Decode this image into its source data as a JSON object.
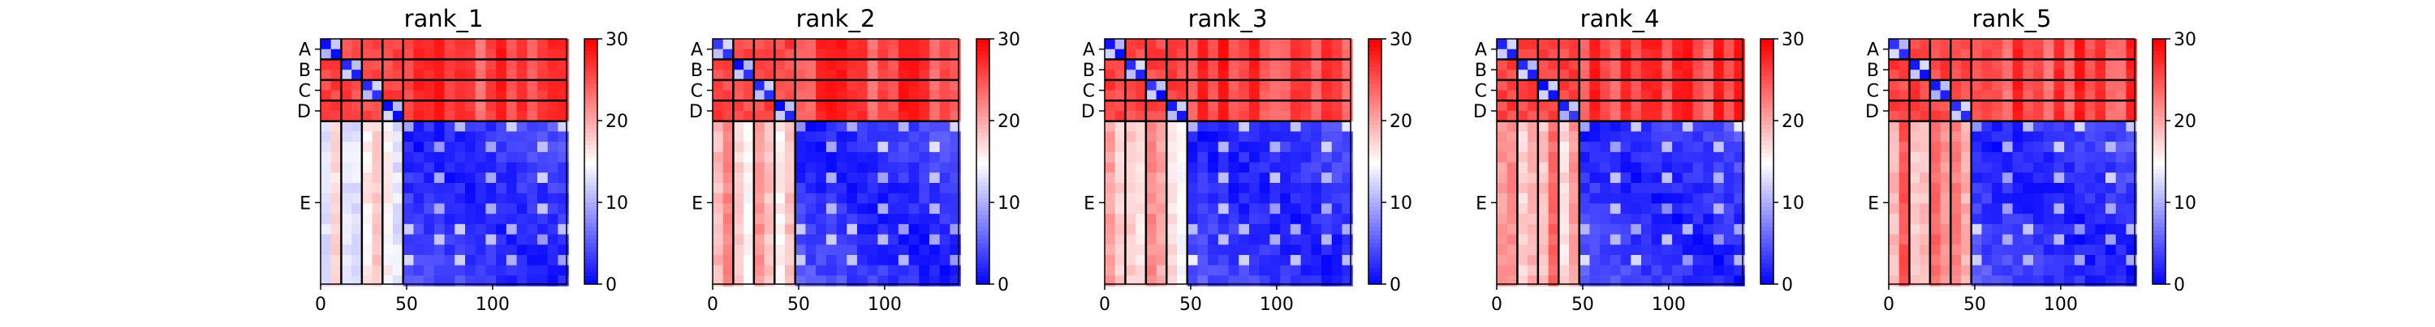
{
  "chart_data": [
    {
      "type": "heatmap",
      "title": "rank_1",
      "xlabel": "",
      "ylabel": "",
      "x_ticks": [
        0,
        50,
        100
      ],
      "xlim": [
        0,
        143
      ],
      "chain_labels": [
        "A",
        "B",
        "C",
        "D",
        "E"
      ],
      "chain_lengths": [
        12,
        12,
        12,
        12,
        95
      ],
      "colorbar": {
        "ticks": [
          0,
          10,
          20,
          30
        ],
        "range": [
          0,
          30
        ],
        "colormap": "bwr"
      },
      "peptide_block_level": 15
    },
    {
      "type": "heatmap",
      "title": "rank_2",
      "xlabel": "",
      "ylabel": "",
      "x_ticks": [
        0,
        50,
        100
      ],
      "xlim": [
        0,
        143
      ],
      "chain_labels": [
        "A",
        "B",
        "C",
        "D",
        "E"
      ],
      "chain_lengths": [
        12,
        12,
        12,
        12,
        95
      ],
      "colorbar": {
        "ticks": [
          0,
          10,
          20,
          30
        ],
        "range": [
          0,
          30
        ],
        "colormap": "bwr"
      },
      "peptide_block_level": 19
    },
    {
      "type": "heatmap",
      "title": "rank_3",
      "xlabel": "",
      "ylabel": "",
      "x_ticks": [
        0,
        50,
        100
      ],
      "xlim": [
        0,
        143
      ],
      "chain_labels": [
        "A",
        "B",
        "C",
        "D",
        "E"
      ],
      "chain_lengths": [
        12,
        12,
        12,
        12,
        95
      ],
      "colorbar": {
        "ticks": [
          0,
          10,
          20,
          30
        ],
        "range": [
          0,
          30
        ],
        "colormap": "bwr"
      },
      "peptide_block_level": 18
    },
    {
      "type": "heatmap",
      "title": "rank_4",
      "xlabel": "",
      "ylabel": "",
      "x_ticks": [
        0,
        50,
        100
      ],
      "xlim": [
        0,
        143
      ],
      "chain_labels": [
        "A",
        "B",
        "C",
        "D",
        "E"
      ],
      "chain_lengths": [
        12,
        12,
        12,
        12,
        95
      ],
      "colorbar": {
        "ticks": [
          0,
          10,
          20,
          30
        ],
        "range": [
          0,
          30
        ],
        "colormap": "bwr"
      },
      "peptide_block_level": 20
    },
    {
      "type": "heatmap",
      "title": "rank_5",
      "xlabel": "",
      "ylabel": "",
      "x_ticks": [
        0,
        50,
        100
      ],
      "xlim": [
        0,
        143
      ],
      "chain_labels": [
        "A",
        "B",
        "C",
        "D",
        "E"
      ],
      "chain_lengths": [
        12,
        12,
        12,
        12,
        95
      ],
      "colorbar": {
        "ticks": [
          0,
          10,
          20,
          30
        ],
        "range": [
          0,
          30
        ],
        "colormap": "bwr"
      },
      "peptide_block_level": 21
    }
  ]
}
